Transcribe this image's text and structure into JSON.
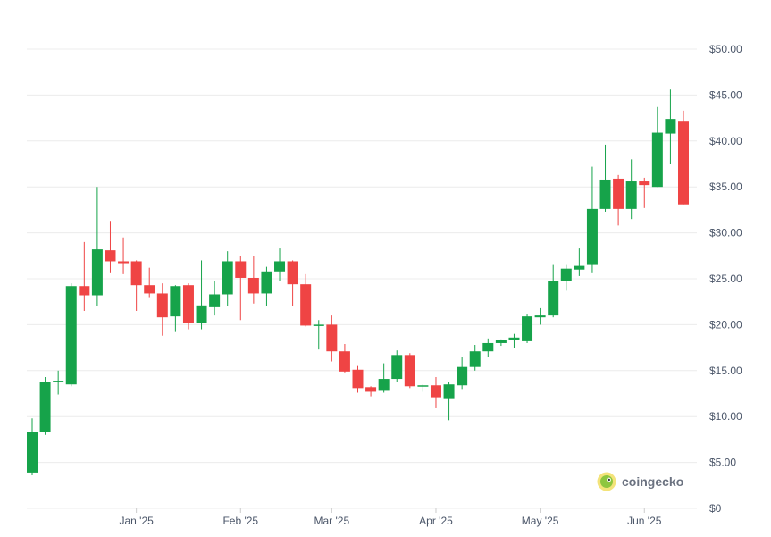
{
  "chart_data": {
    "type": "candlestick",
    "grid": true,
    "y_axis_position": "right",
    "ylim": [
      0,
      50
    ],
    "y_ticks": [
      {
        "value": 0,
        "label": "$0"
      },
      {
        "value": 5,
        "label": "$5.00"
      },
      {
        "value": 10,
        "label": "$10.00"
      },
      {
        "value": 15,
        "label": "$15.00"
      },
      {
        "value": 20,
        "label": "$20.00"
      },
      {
        "value": 25,
        "label": "$25.00"
      },
      {
        "value": 30,
        "label": "$30.00"
      },
      {
        "value": 35,
        "label": "$35.00"
      },
      {
        "value": 40,
        "label": "$40.00"
      },
      {
        "value": 45,
        "label": "$45.00"
      },
      {
        "value": 50,
        "label": "$50.00"
      }
    ],
    "x_ticks": [
      {
        "index": 8,
        "label": "Jan '25"
      },
      {
        "index": 16,
        "label": "Feb '25"
      },
      {
        "index": 23,
        "label": "Mar '25"
      },
      {
        "index": 31,
        "label": "Apr '25"
      },
      {
        "index": 39,
        "label": "May '25"
      },
      {
        "index": 47,
        "label": "Jun '25"
      }
    ],
    "up_color": "#16a34a",
    "down_color": "#ef4444",
    "candles": [
      {
        "o": 3.9,
        "h": 9.8,
        "l": 3.6,
        "c": 8.3
      },
      {
        "o": 8.3,
        "h": 14.3,
        "l": 8.0,
        "c": 13.8
      },
      {
        "o": 13.8,
        "h": 15.0,
        "l": 12.4,
        "c": 13.9
      },
      {
        "o": 13.5,
        "h": 24.5,
        "l": 13.3,
        "c": 24.2
      },
      {
        "o": 24.2,
        "h": 29.0,
        "l": 21.5,
        "c": 23.2
      },
      {
        "o": 23.2,
        "h": 35.0,
        "l": 22.0,
        "c": 28.2
      },
      {
        "o": 28.1,
        "h": 31.3,
        "l": 25.7,
        "c": 26.9
      },
      {
        "o": 26.9,
        "h": 29.5,
        "l": 25.5,
        "c": 26.7
      },
      {
        "o": 26.9,
        "h": 27.0,
        "l": 21.5,
        "c": 24.3
      },
      {
        "o": 24.3,
        "h": 26.2,
        "l": 23.0,
        "c": 23.4
      },
      {
        "o": 23.4,
        "h": 24.5,
        "l": 18.8,
        "c": 20.8
      },
      {
        "o": 20.9,
        "h": 24.3,
        "l": 19.2,
        "c": 24.2
      },
      {
        "o": 24.3,
        "h": 24.5,
        "l": 19.5,
        "c": 20.2
      },
      {
        "o": 20.2,
        "h": 27.0,
        "l": 19.5,
        "c": 22.1
      },
      {
        "o": 21.9,
        "h": 24.8,
        "l": 21.0,
        "c": 23.3
      },
      {
        "o": 23.3,
        "h": 28.0,
        "l": 22.0,
        "c": 26.9
      },
      {
        "o": 26.9,
        "h": 27.5,
        "l": 20.5,
        "c": 25.1
      },
      {
        "o": 25.1,
        "h": 27.5,
        "l": 22.3,
        "c": 23.4
      },
      {
        "o": 23.4,
        "h": 26.3,
        "l": 22.0,
        "c": 25.8
      },
      {
        "o": 25.8,
        "h": 28.3,
        "l": 24.8,
        "c": 26.9
      },
      {
        "o": 26.9,
        "h": 27.0,
        "l": 22.0,
        "c": 24.4
      },
      {
        "o": 24.4,
        "h": 25.5,
        "l": 19.8,
        "c": 19.9
      },
      {
        "o": 19.9,
        "h": 20.5,
        "l": 17.3,
        "c": 20.0
      },
      {
        "o": 20.0,
        "h": 21.0,
        "l": 16.0,
        "c": 17.1
      },
      {
        "o": 17.1,
        "h": 17.9,
        "l": 14.8,
        "c": 14.9
      },
      {
        "o": 15.1,
        "h": 15.5,
        "l": 12.6,
        "c": 13.1
      },
      {
        "o": 13.2,
        "h": 13.3,
        "l": 12.2,
        "c": 12.7
      },
      {
        "o": 12.8,
        "h": 15.8,
        "l": 12.6,
        "c": 14.1
      },
      {
        "o": 14.1,
        "h": 17.2,
        "l": 13.8,
        "c": 16.7
      },
      {
        "o": 16.7,
        "h": 16.9,
        "l": 13.1,
        "c": 13.3
      },
      {
        "o": 13.3,
        "h": 13.5,
        "l": 12.7,
        "c": 13.4
      },
      {
        "o": 13.4,
        "h": 14.3,
        "l": 10.9,
        "c": 12.1
      },
      {
        "o": 12.0,
        "h": 13.8,
        "l": 9.6,
        "c": 13.5
      },
      {
        "o": 13.4,
        "h": 16.5,
        "l": 13.0,
        "c": 15.4
      },
      {
        "o": 15.4,
        "h": 17.8,
        "l": 15.0,
        "c": 17.1
      },
      {
        "o": 17.1,
        "h": 18.5,
        "l": 16.5,
        "c": 18.0
      },
      {
        "o": 18.0,
        "h": 18.4,
        "l": 17.7,
        "c": 18.3
      },
      {
        "o": 18.3,
        "h": 19.0,
        "l": 17.5,
        "c": 18.6
      },
      {
        "o": 18.2,
        "h": 21.2,
        "l": 18.0,
        "c": 20.9
      },
      {
        "o": 20.8,
        "h": 21.8,
        "l": 20.0,
        "c": 21.0
      },
      {
        "o": 21.0,
        "h": 26.5,
        "l": 20.8,
        "c": 24.8
      },
      {
        "o": 24.8,
        "h": 26.5,
        "l": 23.7,
        "c": 26.1
      },
      {
        "o": 26.0,
        "h": 28.3,
        "l": 25.3,
        "c": 26.4
      },
      {
        "o": 26.5,
        "h": 37.2,
        "l": 25.7,
        "c": 32.6
      },
      {
        "o": 32.6,
        "h": 39.6,
        "l": 32.3,
        "c": 35.8
      },
      {
        "o": 35.9,
        "h": 36.3,
        "l": 30.8,
        "c": 32.6
      },
      {
        "o": 32.6,
        "h": 38.0,
        "l": 31.5,
        "c": 35.6
      },
      {
        "o": 35.6,
        "h": 36.0,
        "l": 32.7,
        "c": 35.2
      },
      {
        "o": 35.0,
        "h": 43.7,
        "l": 35.0,
        "c": 40.9
      },
      {
        "o": 40.8,
        "h": 45.6,
        "l": 37.5,
        "c": 42.4
      },
      {
        "o": 42.2,
        "h": 43.3,
        "l": 33.1,
        "c": 33.1
      }
    ]
  },
  "watermark": {
    "text": "coingecko"
  }
}
